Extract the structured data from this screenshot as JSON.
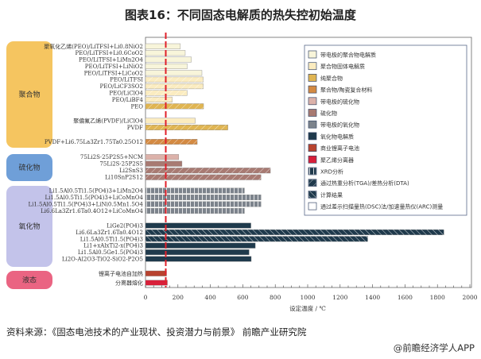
{
  "title": "图表16：不同固态电解质的热失控初始温度",
  "source": "资料来源：《固态电池技术的产业现状、投资潜力与前景》 前瞻产业研究院",
  "credit": "@前瞻经济学人APP",
  "chart_data": {
    "type": "bar",
    "orientation": "horizontal",
    "title": "图表16：不同固态电解质的热失控初始温度",
    "xlabel": "设定温度 / ℃",
    "xlim": [
      0,
      2000
    ],
    "xticks": [
      "0",
      "200",
      "400",
      "600",
      "800",
      "1000",
      "1200",
      "1400",
      "1600",
      "1800",
      "2000"
    ],
    "reference_line": 125,
    "groups": [
      {
        "name": "聚合物",
        "color": "#f5c560"
      },
      {
        "name": "硫化物",
        "color": "#6f9fd8"
      },
      {
        "name": "氧化物",
        "color": "#c3c3ea"
      },
      {
        "name": "液态",
        "color": "#ea6482"
      }
    ],
    "legend": [
      {
        "label": "带电极的聚合物电解质",
        "key": "c1"
      },
      {
        "label": "聚合物固体电解质",
        "key": "c2"
      },
      {
        "label": "纯聚合物",
        "key": "c3"
      },
      {
        "label": "聚合物/陶瓷复合材料",
        "key": "c4"
      },
      {
        "label": "带电极的硫化物",
        "key": "c5"
      },
      {
        "label": "硫化物",
        "key": "c6"
      },
      {
        "label": "带电极的氧化物",
        "key": "c7"
      },
      {
        "label": "氧化物电解质",
        "key": "c8"
      },
      {
        "label": "商业锂离子电池",
        "key": "c9"
      },
      {
        "label": "聚乙烯分离器",
        "key": "c10"
      },
      {
        "label": "XRD分析",
        "key": "p_xrd"
      },
      {
        "label": "通过热重分析(TGA)/差热分析(DTA)",
        "key": "p_tga"
      },
      {
        "label": "计算结果",
        "key": "p_calc"
      },
      {
        "label": "通过差示扫描量热(DSC)法/加速量热仪(ARC)测量",
        "key": "p_dsc"
      }
    ],
    "colors": {
      "c1": "#f8f5da",
      "c2": "#fbecc0",
      "c3": "#e0b552",
      "c4": "#d48a42",
      "c5": "#dcb2aa",
      "c6": "#a87a72",
      "c7": "#7c838c",
      "c8": "#1f3a4c",
      "c9": "#b8432f",
      "c10": "#d8203a"
    },
    "bars": [
      {
        "label": "聚氧化乙烯(PEO)/LiTFSI+Li0.8NiO2",
        "value": 215,
        "color": "c1",
        "pattern": "p_dsc",
        "group": 0
      },
      {
        "label": "PEO/LiTFSI+Li0.6CoO2",
        "value": 245,
        "color": "c1",
        "pattern": "p_dsc",
        "group": 0
      },
      {
        "label": "PEO/LiTFSI+LiMn2O4",
        "value": 283,
        "color": "c1",
        "pattern": "p_dsc",
        "group": 0
      },
      {
        "label": "PEO/LiTFSI+LiNiO2",
        "value": 257,
        "color": "c1",
        "pattern": "p_dsc",
        "group": 0
      },
      {
        "label": "PEO/LiTFSI+LiCoO2",
        "value": 348,
        "color": "c1",
        "pattern": "p_dsc",
        "group": 0
      },
      {
        "label": "PEO/LiTFSI",
        "value": 356,
        "color": "c2",
        "pattern": "p_tga",
        "group": 0
      },
      {
        "label": "PEO/LiCF3SO2",
        "value": 356,
        "color": "c2",
        "pattern": "p_tga",
        "group": 0
      },
      {
        "label": "PEO/LiClO4",
        "value": 257,
        "color": "c2",
        "pattern": "p_tga",
        "group": 0
      },
      {
        "label": "PEO/LiBF4",
        "value": 165,
        "color": "c2",
        "pattern": "p_tga",
        "group": 0
      },
      {
        "label": "PEO",
        "value": 358,
        "color": "c3",
        "pattern": "p_tga",
        "group": 0
      },
      {
        "label": "聚偏氟乙烯(PVDF)/LiClO4",
        "value": 307,
        "color": "c2",
        "pattern": "p_dsc",
        "group": 0
      },
      {
        "label": "PVDF",
        "value": 508,
        "color": "c3",
        "pattern": "p_tga",
        "group": 0
      },
      {
        "label": "PVDF+Li6.75La3Zr1.75Ta0.25O12",
        "value": 319,
        "color": "c4",
        "pattern": "p_tga",
        "group": 0
      },
      {
        "label": "75Li2S·25P2S5+NCM",
        "value": 205,
        "color": "c5",
        "pattern": "p_dsc",
        "group": 1
      },
      {
        "label": "75Li2S·25P2S5",
        "value": 225,
        "color": "c6",
        "pattern": "p_dsc",
        "group": 1
      },
      {
        "label": "Li2SnS3",
        "value": 770,
        "color": "c6",
        "pattern": "p_tga",
        "group": 1
      },
      {
        "label": "Li10SnP2S12",
        "value": 712,
        "color": "c6",
        "pattern": "p_tga",
        "group": 1
      },
      {
        "label": "Li1.5Al0.5Ti1.5(PO4)3+LiMn2O4",
        "value": 610,
        "color": "c7",
        "pattern": "p_xrd",
        "group": 2
      },
      {
        "label": "Li1.5Al0.5Ti1.5(PO4)3+LiCoMnO4",
        "value": 712,
        "color": "c7",
        "pattern": "p_xrd",
        "group": 2
      },
      {
        "label": "Li1.5Al0.5Ti1.5(PO4)3+LiNi0.5Mn1.5O4",
        "value": 712,
        "color": "c7",
        "pattern": "p_xrd",
        "group": 2
      },
      {
        "label": "Li6.6La3Zr1.6Ta0.4O12+LiCoMnO4",
        "value": 610,
        "color": "c7",
        "pattern": "p_xrd",
        "group": 2
      },
      {
        "label": "LiGe2(PO4)3",
        "value": 650,
        "color": "c8",
        "pattern": "p_dsc",
        "group": 2
      },
      {
        "label": "Li6.6La3Zr1.6Ta0.4O12",
        "value": 1840,
        "color": "c8",
        "pattern": "p_calc",
        "group": 2
      },
      {
        "label": "Li1.5Al0.5Ti1.5(PO4)3",
        "value": 1370,
        "color": "c8",
        "pattern": "p_calc",
        "group": 2
      },
      {
        "label": "Li1+xAlxTi2-x(PO4)3",
        "value": 677,
        "color": "c8",
        "pattern": "p_dsc",
        "group": 2
      },
      {
        "label": "Li1.5Al0.5Ge1.5(PO4)3",
        "value": 639,
        "color": "c8",
        "pattern": "p_dsc",
        "group": 2
      },
      {
        "label": "Li2O-Al2O3-TiO2-SiO2-P2O5",
        "value": 652,
        "color": "c8",
        "pattern": "p_dsc",
        "group": 2
      },
      {
        "label": "锂离子电池自加热",
        "value": 130,
        "color": "c9",
        "pattern": "p_dsc",
        "group": 3
      },
      {
        "label": "分离器熔化",
        "value": 135,
        "color": "c10",
        "pattern": "p_dsc",
        "group": 3
      }
    ]
  }
}
